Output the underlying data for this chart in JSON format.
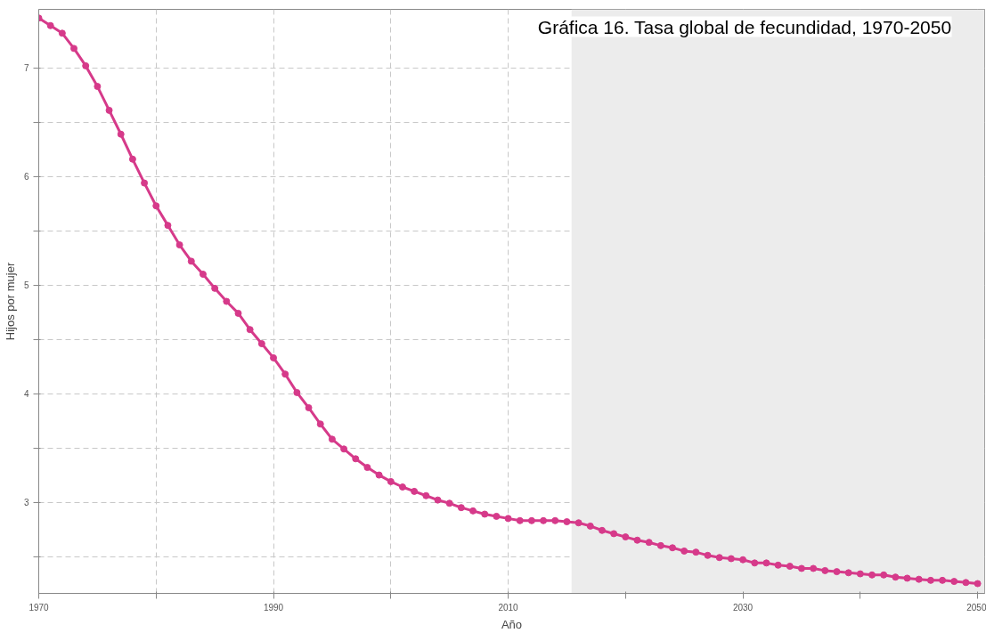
{
  "chart_data": {
    "type": "line",
    "title": "Gráfica 16. Tasa global de fecundidad, 1970-2050",
    "xlabel": "Año",
    "ylabel": "Hijos por mujer",
    "x": [
      1970,
      1971,
      1972,
      1973,
      1974,
      1975,
      1976,
      1977,
      1978,
      1979,
      1980,
      1981,
      1982,
      1983,
      1984,
      1985,
      1986,
      1987,
      1988,
      1989,
      1990,
      1991,
      1992,
      1993,
      1994,
      1995,
      1996,
      1997,
      1998,
      1999,
      2000,
      2001,
      2002,
      2003,
      2004,
      2005,
      2006,
      2007,
      2008,
      2009,
      2010,
      2011,
      2012,
      2013,
      2014,
      2015,
      2016,
      2017,
      2018,
      2019,
      2020,
      2021,
      2022,
      2023,
      2024,
      2025,
      2026,
      2027,
      2028,
      2029,
      2030,
      2031,
      2032,
      2033,
      2034,
      2035,
      2036,
      2037,
      2038,
      2039,
      2040,
      2041,
      2042,
      2043,
      2044,
      2045,
      2046,
      2047,
      2048,
      2049,
      2050
    ],
    "series": [
      {
        "color": "#d63a8a",
        "values": [
          7.46,
          7.39,
          7.32,
          7.18,
          7.02,
          6.83,
          6.61,
          6.39,
          6.16,
          5.94,
          5.73,
          5.55,
          5.37,
          5.22,
          5.1,
          4.97,
          4.85,
          4.74,
          4.59,
          4.46,
          4.33,
          4.18,
          4.01,
          3.87,
          3.72,
          3.58,
          3.49,
          3.4,
          3.32,
          3.25,
          3.19,
          3.14,
          3.1,
          3.06,
          3.02,
          2.99,
          2.95,
          2.92,
          2.89,
          2.87,
          2.85,
          2.83,
          2.83,
          2.83,
          2.83,
          2.82,
          2.81,
          2.78,
          2.74,
          2.71,
          2.68,
          2.65,
          2.63,
          2.6,
          2.58,
          2.55,
          2.54,
          2.51,
          2.49,
          2.48,
          2.47,
          2.44,
          2.44,
          2.42,
          2.41,
          2.39,
          2.39,
          2.37,
          2.36,
          2.35,
          2.34,
          2.33,
          2.33,
          2.31,
          2.3,
          2.29,
          2.28,
          2.28,
          2.27,
          2.26,
          2.25
        ]
      }
    ],
    "xlim": [
      1970,
      2050.6
    ],
    "ylim": [
      2.16,
      7.54
    ],
    "xticks": [
      1970,
      {
        "value": 1980,
        "label": null
      },
      1990,
      {
        "value": 2000,
        "label": null
      },
      2010,
      {
        "value": 2020,
        "label": null
      },
      2030,
      {
        "value": 2040,
        "label": null
      },
      2050
    ],
    "yticks": [
      {
        "value": 2.5,
        "label": null
      },
      3,
      {
        "value": 3.5,
        "label": null
      },
      4,
      {
        "value": 4.5,
        "label": null
      },
      5,
      {
        "value": 5.5,
        "label": null
      },
      6,
      {
        "value": 6.5,
        "label": null
      },
      7
    ],
    "bands": [
      {
        "axis": "x",
        "from": 2015.4,
        "to": 2050.6,
        "color": "#ececec"
      }
    ],
    "grid": true,
    "marker": "circle",
    "line_style": "solid"
  }
}
